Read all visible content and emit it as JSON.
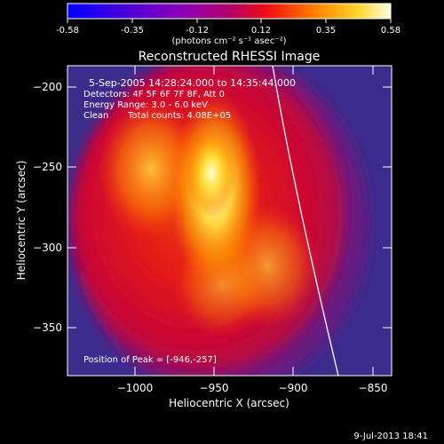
{
  "colorbar": {
    "ticks": [
      "-0.58",
      "-0.35",
      "-0.12",
      "0.12",
      "0.35",
      "0.58"
    ],
    "unit_label": "(photons cm⁻² s⁻¹ asec⁻²)"
  },
  "title": "Reconstructed RHESSI Image",
  "annotations": {
    "time_range": "5-Sep-2005 14:28:24.000 to 14:35:44.000",
    "detectors": "Detectors: 4F 5F 6F 7F 8F, Att 0",
    "energy_range": "Energy Range: 3.0 - 6.0 keV",
    "method": "Clean",
    "total_counts": "Total counts: 4.08E+05",
    "peak_position": "Position of Peak = [-946,-257]"
  },
  "axes": {
    "xlabel": "Heliocentric X (arcsec)",
    "ylabel": "Heliocentric Y (arcsec)",
    "x_ticks": [
      "-1000",
      "-950",
      "-900",
      "-850"
    ],
    "y_ticks": [
      "-200",
      "-250",
      "-300",
      "-350"
    ]
  },
  "footer_timestamp": "9-Jul-2013 18:41",
  "colors": {
    "background": "#000000",
    "limb_line": "#ffffff"
  }
}
